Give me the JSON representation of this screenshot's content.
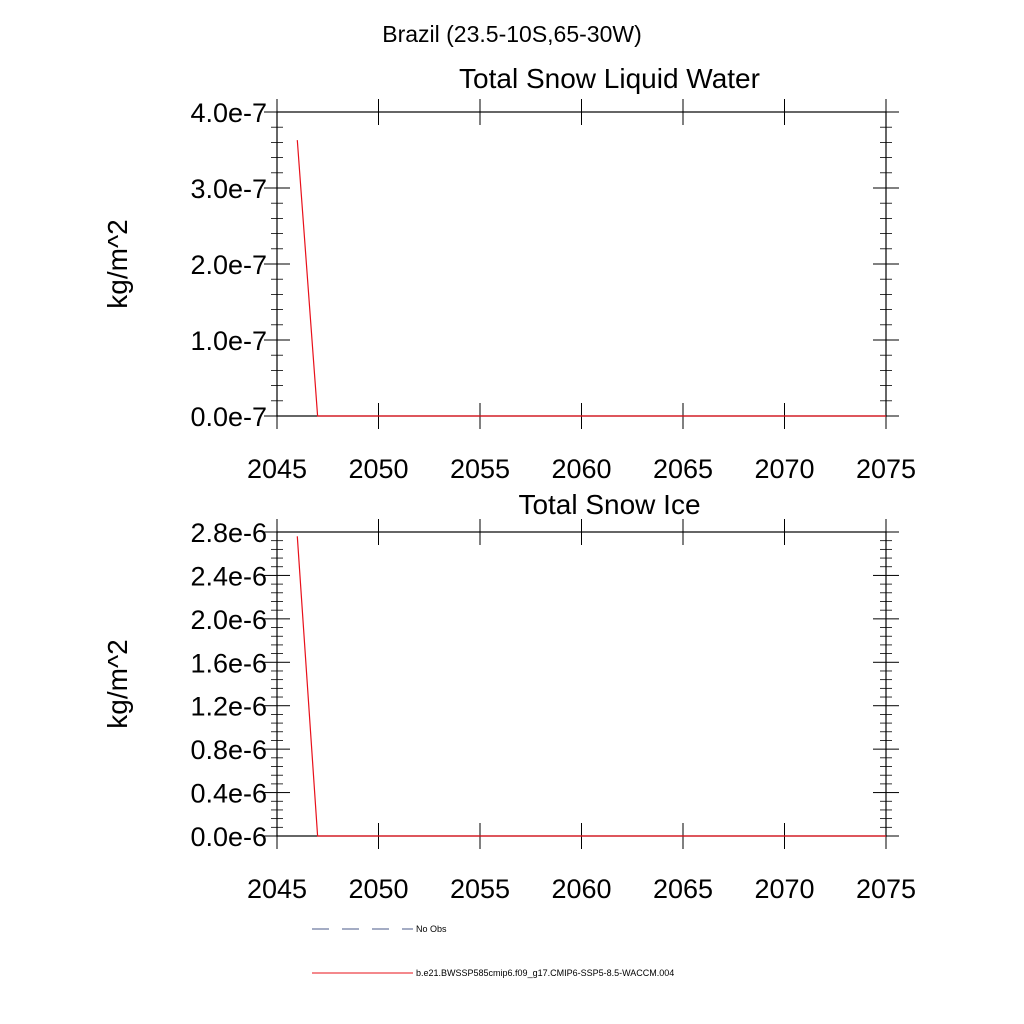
{
  "figure": {
    "main_title": "Brazil (23.5-10S,65-30W)"
  },
  "chart_data": [
    {
      "type": "line",
      "title": "Total Snow Liquid Water",
      "xlabel": "",
      "ylabel": "kg/m^2",
      "xlim": [
        2045,
        2075
      ],
      "ylim": [
        0,
        4e-07
      ],
      "x_ticks": [
        2045,
        2050,
        2055,
        2060,
        2065,
        2070,
        2075
      ],
      "x_tick_labels": [
        "2045",
        "2050",
        "2055",
        "2060",
        "2065",
        "2070",
        "2075"
      ],
      "y_ticks": [
        0,
        1e-07,
        2e-07,
        3e-07,
        4e-07
      ],
      "y_tick_labels": [
        "0.0e-7",
        "1.0e-7",
        "2.0e-7",
        "3.0e-7",
        "4.0e-7"
      ],
      "series": [
        {
          "name": "b.e21.BWSSP585cmip6.f09_g17.CMIP6-SSP5-8.5-WACCM.004",
          "color": "#e8101a",
          "x": [
            2046,
            2047,
            2048,
            2049,
            2050,
            2055,
            2060,
            2065,
            2070,
            2075
          ],
          "y": [
            3.63e-07,
            0,
            0,
            0,
            0,
            0,
            0,
            0,
            0,
            0
          ]
        }
      ]
    },
    {
      "type": "line",
      "title": "Total Snow Ice",
      "xlabel": "",
      "ylabel": "kg/m^2",
      "xlim": [
        2045,
        2075
      ],
      "ylim": [
        0,
        2.8e-06
      ],
      "x_ticks": [
        2045,
        2050,
        2055,
        2060,
        2065,
        2070,
        2075
      ],
      "x_tick_labels": [
        "2045",
        "2050",
        "2055",
        "2060",
        "2065",
        "2070",
        "2075"
      ],
      "y_ticks": [
        0,
        4e-07,
        8e-07,
        1.2e-06,
        1.6e-06,
        2e-06,
        2.4e-06,
        2.8e-06
      ],
      "y_tick_labels": [
        "0.0e-6",
        "0.4e-6",
        "0.8e-6",
        "1.2e-6",
        "1.6e-6",
        "2.0e-6",
        "2.4e-6",
        "2.8e-6"
      ],
      "series": [
        {
          "name": "b.e21.BWSSP585cmip6.f09_g17.CMIP6-SSP5-8.5-WACCM.004",
          "color": "#e8101a",
          "x": [
            2046,
            2047,
            2048,
            2049,
            2050,
            2055,
            2060,
            2065,
            2070,
            2075
          ],
          "y": [
            2.76e-06,
            0,
            0,
            0,
            0,
            0,
            0,
            0,
            0,
            0
          ]
        }
      ]
    }
  ],
  "legend": {
    "entries": [
      {
        "label": "No Obs",
        "color": "#4a5a8a",
        "style": "dashed"
      },
      {
        "label": "b.e21.BWSSP585cmip6.f09_g17.CMIP6-SSP5-8.5-WACCM.004",
        "color": "#e8101a",
        "style": "solid"
      }
    ]
  }
}
